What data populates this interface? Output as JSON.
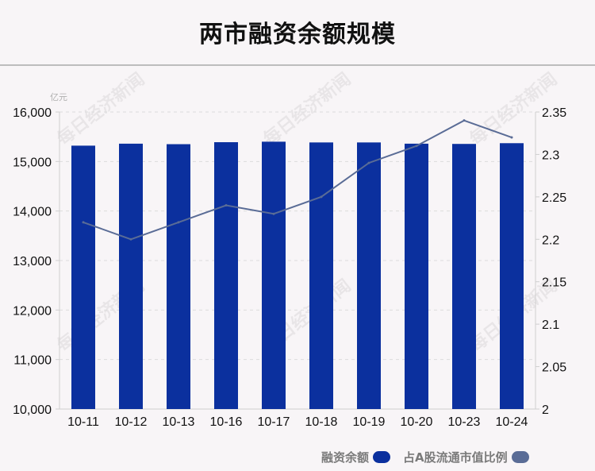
{
  "title": "两市融资余额规模",
  "watermark": "每日经济新闻",
  "colors": {
    "bar": "#0b309e",
    "line": "#5a6c96",
    "axis": "#cfcfcf",
    "text": "#111111"
  },
  "chart_data": {
    "type": "bar",
    "categories": [
      "10-11",
      "10-12",
      "10-13",
      "10-16",
      "10-17",
      "10-18",
      "10-19",
      "10-20",
      "10-23",
      "10-24"
    ],
    "y_unit": "亿元",
    "y_ticks": [
      "10,000",
      "11,000",
      "12,000",
      "13,000",
      "14,000",
      "15,000",
      "16,000"
    ],
    "y2_ticks": [
      "2",
      "2.05",
      "2.1",
      "2.15",
      "2.2",
      "2.25",
      "2.3",
      "2.35"
    ],
    "ylim": [
      10000,
      16000
    ],
    "y2lim": [
      2.0,
      2.35
    ],
    "series": [
      {
        "name": "融资余额",
        "type": "bar",
        "axis": "left",
        "values": [
          15320,
          15360,
          15350,
          15390,
          15400,
          15385,
          15385,
          15360,
          15355,
          15370
        ]
      },
      {
        "name": "占A股流通市值比例",
        "type": "line",
        "axis": "right",
        "values": [
          2.22,
          2.2,
          2.22,
          2.24,
          2.23,
          2.25,
          2.29,
          2.31,
          2.34,
          2.32
        ]
      }
    ],
    "legend_position": "bottom-right",
    "grid": "dashed-horizontal"
  }
}
